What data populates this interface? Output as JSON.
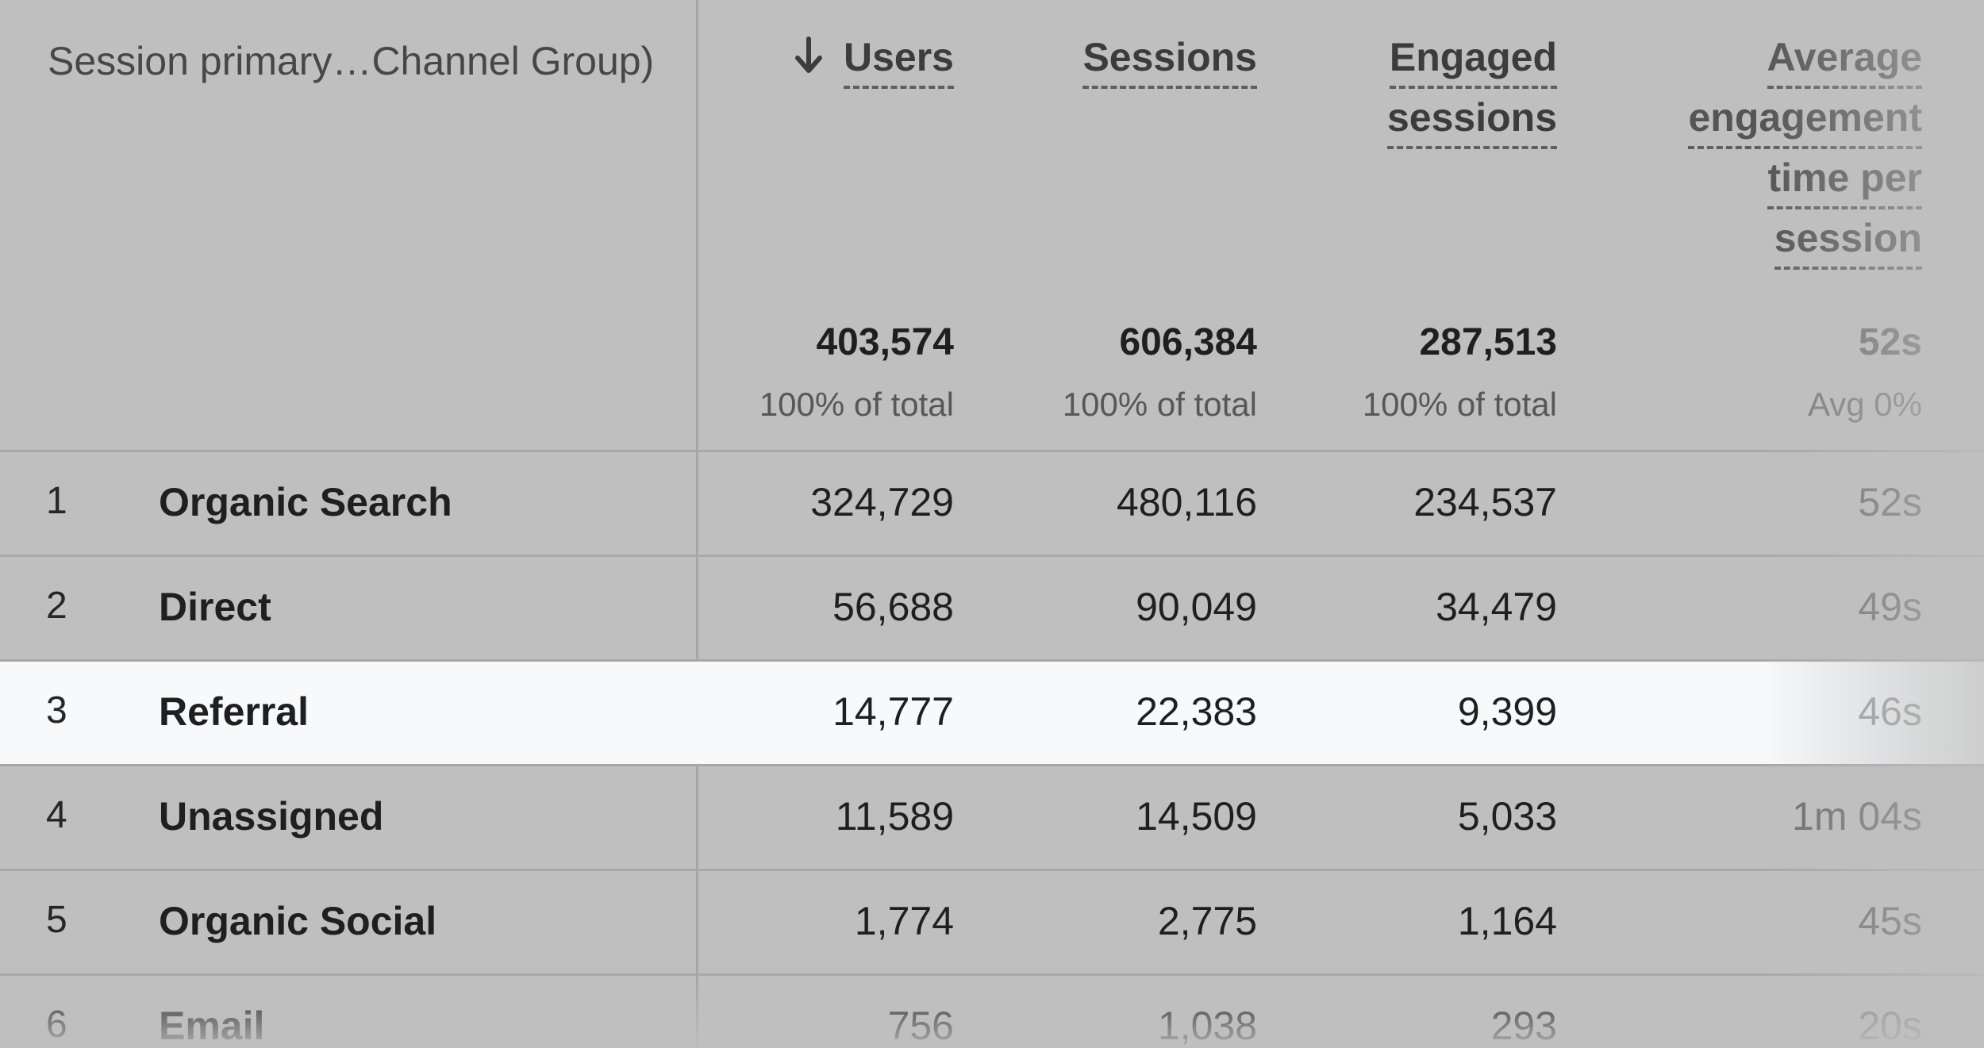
{
  "table": {
    "dimension_header": "Session primary…Channel Group)",
    "headers": {
      "users": "Users",
      "sessions": "Sessions",
      "engaged_line1": "Engaged",
      "engaged_line2": "sessions",
      "avg_line1": "Average",
      "avg_line2": "engagement",
      "avg_line3": "time per",
      "avg_line4": "session"
    },
    "sort_icon": "arrow-down-icon",
    "totals": {
      "users": "403,574",
      "users_sub": "100% of total",
      "sessions": "606,384",
      "sessions_sub": "100% of total",
      "engaged": "287,513",
      "engaged_sub": "100% of total",
      "avg": "52s",
      "avg_sub": "Avg 0%"
    },
    "rows": [
      {
        "idx": "1",
        "name": "Organic Search",
        "users": "324,729",
        "sessions": "480,116",
        "engaged": "234,537",
        "avg": "52s"
      },
      {
        "idx": "2",
        "name": "Direct",
        "users": "56,688",
        "sessions": "90,049",
        "engaged": "34,479",
        "avg": "49s"
      },
      {
        "idx": "3",
        "name": "Referral",
        "users": "14,777",
        "sessions": "22,383",
        "engaged": "9,399",
        "avg": "46s"
      },
      {
        "idx": "4",
        "name": "Unassigned",
        "users": "11,589",
        "sessions": "14,509",
        "engaged": "5,033",
        "avg": "1m 04s"
      },
      {
        "idx": "5",
        "name": "Organic Social",
        "users": "1,774",
        "sessions": "2,775",
        "engaged": "1,164",
        "avg": "45s"
      },
      {
        "idx": "6",
        "name": "Email",
        "users": "756",
        "sessions": "1,038",
        "engaged": "293",
        "avg": "20s"
      }
    ]
  },
  "colors": {
    "overlay_gray": "#bfbfbf",
    "highlight_row": "#f8f9fb"
  }
}
